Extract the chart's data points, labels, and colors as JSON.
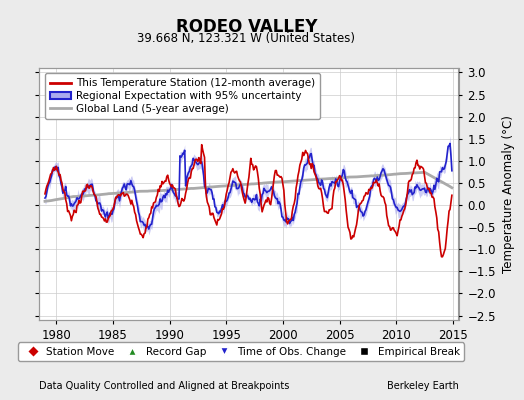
{
  "title": "RODEO VALLEY",
  "subtitle": "39.668 N, 123.321 W (United States)",
  "xlabel_bottom": "Data Quality Controlled and Aligned at Breakpoints",
  "xlabel_right": "Berkeley Earth",
  "ylabel": "Temperature Anomaly (°C)",
  "ylim": [
    -2.6,
    3.1
  ],
  "yticks": [
    -2.5,
    -2,
    -1.5,
    -1,
    -0.5,
    0,
    0.5,
    1,
    1.5,
    2,
    2.5,
    3
  ],
  "xlim": [
    1978.5,
    2015.5
  ],
  "xticks": [
    1980,
    1985,
    1990,
    1995,
    2000,
    2005,
    2010,
    2015
  ],
  "bg_color": "#ebebeb",
  "plot_bg_color": "#ffffff",
  "grid_color": "#cccccc",
  "line_station_color": "#cc0000",
  "line_regional_color": "#2222cc",
  "line_regional_fill": "#aaaaee",
  "line_global_color": "#aaaaaa",
  "bottom_legend": [
    {
      "label": "Station Move",
      "color": "#cc0000",
      "marker": "D"
    },
    {
      "label": "Record Gap",
      "color": "#228B22",
      "marker": "^"
    },
    {
      "label": "Time of Obs. Change",
      "color": "#2222cc",
      "marker": "v"
    },
    {
      "label": "Empirical Break",
      "color": "#000000",
      "marker": "s"
    }
  ]
}
